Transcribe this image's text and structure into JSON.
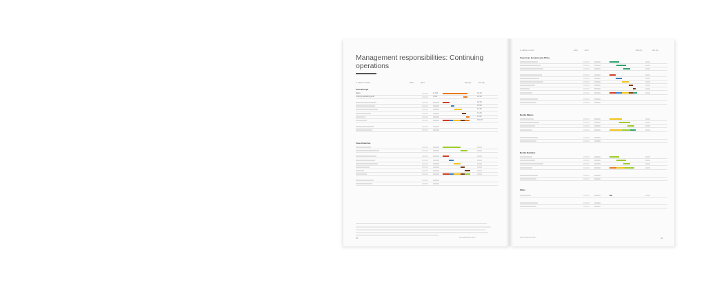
{
  "left_page": {
    "title": "Management responsibilities: Continuing operations",
    "header": {
      "label": "In millions of CHF",
      "col1": "2016",
      "col2": "2017",
      "col3": "RIG (%)",
      "col4": "OG (%)"
    },
    "sections": [
      {
        "name": "Zone Europe",
        "rows": [
          {
            "label": "Sales",
            "v1": "",
            "v2": "11 601",
            "pct": "31.1%"
          },
          {
            "label": "Trading operating profit",
            "v1": "",
            "v2": "1 640",
            "pct": "15.1%"
          },
          {
            "label": "Powdered and Liquid Beverages",
            "v1": "",
            "v2": "",
            "pct": "26.3%"
          },
          {
            "label": "Milk products and Ice cream",
            "v1": "",
            "v2": "",
            "pct": "15.5%"
          },
          {
            "label": "Prepared dishes and cooking aids",
            "v1": "",
            "v2": "",
            "pct": "27.4%"
          },
          {
            "label": "Confectionery",
            "v1": "",
            "v2": "",
            "pct": "17.2%"
          },
          {
            "label": "PetCare",
            "v1": "",
            "v2": "",
            "pct": "11.4%"
          },
          {
            "label": "Total sales",
            "v1": "",
            "v2": "",
            "pct": "100.0%"
          },
          {
            "label": "Trading operating profit",
            "v1": "",
            "v2": "",
            "pct": ""
          },
          {
            "label": "Capital expenditure",
            "v1": "",
            "v2": "",
            "pct": ""
          }
        ]
      },
      {
        "name": "Zone Americas",
        "rows": [
          {
            "label": "Sales",
            "v1": "",
            "v2": "",
            "pct": ""
          },
          {
            "label": "Trading operating profit",
            "v1": "",
            "v2": "",
            "pct": ""
          },
          {
            "label": "Powdered and Liquid Beverages",
            "v1": "",
            "v2": "",
            "pct": ""
          },
          {
            "label": "Milk products and Ice cream",
            "v1": "",
            "v2": "",
            "pct": ""
          },
          {
            "label": "Prepared dishes and cooking aids",
            "v1": "",
            "v2": "",
            "pct": ""
          },
          {
            "label": "Confectionery",
            "v1": "",
            "v2": "",
            "pct": ""
          },
          {
            "label": "PetCare",
            "v1": "",
            "v2": "",
            "pct": ""
          },
          {
            "label": "Total sales",
            "v1": "",
            "v2": "",
            "pct": ""
          },
          {
            "label": "Trading operating profit",
            "v1": "",
            "v2": "",
            "pct": ""
          },
          {
            "label": "Capital expenditure",
            "v1": "",
            "v2": "",
            "pct": ""
          }
        ]
      }
    ],
    "folio": "40",
    "publication": "Annual Review 2017"
  },
  "right_page": {
    "header": {
      "label": "In millions of CHF",
      "col1": "2016",
      "col2": "2017",
      "col3": "RIG (%)",
      "col4": "OG (%)"
    },
    "sections": [
      {
        "name": "Zone Asia, Oceania and Africa"
      },
      {
        "name": "Nestlé Waters"
      },
      {
        "name": "Nestlé Nutrition"
      },
      {
        "name": "Other"
      }
    ],
    "folio": "41",
    "publication": "Annual Review 2017"
  },
  "colors": {
    "orange": "#e8791e",
    "red": "#d23c1e",
    "blue": "#3b7fc4",
    "yellow": "#f2c31a",
    "brown": "#7a3b1c",
    "lime": "#9ccc2a",
    "green": "#2ea36b",
    "gray": "#999999"
  }
}
